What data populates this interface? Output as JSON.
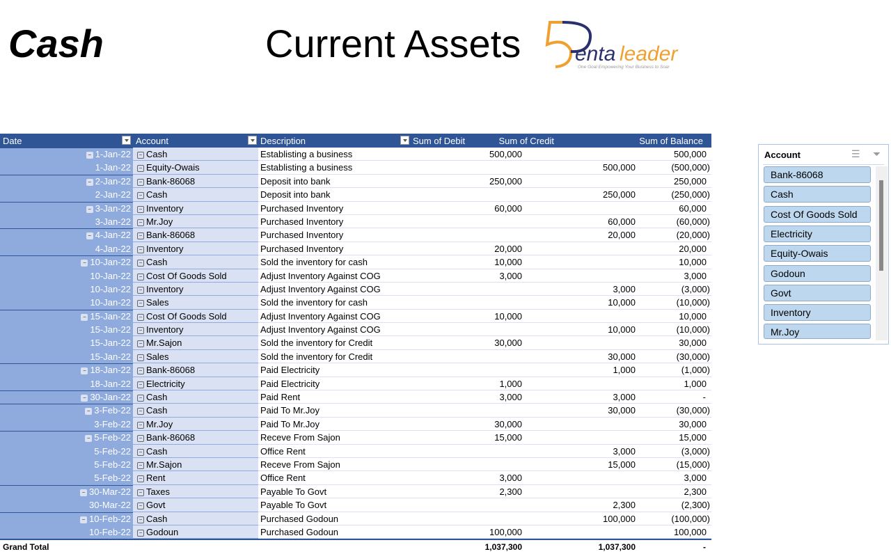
{
  "header": {
    "sheet_label": "Cash",
    "title": "Current Assets"
  },
  "logo": {
    "brand": "Pentaleader",
    "digit": "5",
    "word_dark": "enta",
    "word_light": "leader",
    "tagline": "One Goal Empowering Your Business to Soar",
    "colors": {
      "orange": "#f0a030",
      "navy": "#2a2f6e"
    }
  },
  "pivot": {
    "columns": [
      "Date",
      "Account",
      "Description",
      "Sum of Debit",
      "Sum of Credit",
      "Sum of Balance"
    ],
    "rows": [
      {
        "first": true,
        "date": "1-Jan-22",
        "account": "Cash",
        "description": "Establisting a business",
        "debit": "500,000",
        "credit": "",
        "balance": "500,000"
      },
      {
        "first": false,
        "date": "1-Jan-22",
        "account": "Equity-Owais",
        "description": "Establisting a business",
        "debit": "",
        "credit": "500,000",
        "balance": "(500,000)"
      },
      {
        "first": true,
        "date": "2-Jan-22",
        "account": "Bank-86068",
        "description": "Deposit into bank",
        "debit": "250,000",
        "credit": "",
        "balance": "250,000"
      },
      {
        "first": false,
        "date": "2-Jan-22",
        "account": "Cash",
        "description": "Deposit into bank",
        "debit": "",
        "credit": "250,000",
        "balance": "(250,000)"
      },
      {
        "first": true,
        "date": "3-Jan-22",
        "account": "Inventory",
        "description": "Purchased Inventory",
        "debit": "60,000",
        "credit": "",
        "balance": "60,000"
      },
      {
        "first": false,
        "date": "3-Jan-22",
        "account": "Mr.Joy",
        "description": "Purchased Inventory",
        "debit": "",
        "credit": "60,000",
        "balance": "(60,000)"
      },
      {
        "first": true,
        "date": "4-Jan-22",
        "account": "Bank-86068",
        "description": "Purchased Inventory",
        "debit": "",
        "credit": "20,000",
        "balance": "(20,000)"
      },
      {
        "first": false,
        "date": "4-Jan-22",
        "account": "Inventory",
        "description": "Purchased Inventory",
        "debit": "20,000",
        "credit": "",
        "balance": "20,000"
      },
      {
        "first": true,
        "date": "10-Jan-22",
        "account": "Cash",
        "description": "Sold the inventory for cash",
        "debit": "10,000",
        "credit": "",
        "balance": "10,000"
      },
      {
        "first": false,
        "date": "10-Jan-22",
        "account": "Cost Of Goods Sold",
        "description": "Adjust Inventory Against COG",
        "debit": "3,000",
        "credit": "",
        "balance": "3,000"
      },
      {
        "first": false,
        "date": "10-Jan-22",
        "account": "Inventory",
        "description": "Adjust Inventory Against COG",
        "debit": "",
        "credit": "3,000",
        "balance": "(3,000)"
      },
      {
        "first": false,
        "date": "10-Jan-22",
        "account": "Sales",
        "description": "Sold the inventory for cash",
        "debit": "",
        "credit": "10,000",
        "balance": "(10,000)"
      },
      {
        "first": true,
        "date": "15-Jan-22",
        "account": "Cost Of Goods Sold",
        "description": "Adjust Inventory Against COG",
        "debit": "10,000",
        "credit": "",
        "balance": "10,000"
      },
      {
        "first": false,
        "date": "15-Jan-22",
        "account": "Inventory",
        "description": "Adjust Inventory Against COG",
        "debit": "",
        "credit": "10,000",
        "balance": "(10,000)"
      },
      {
        "first": false,
        "date": "15-Jan-22",
        "account": "Mr.Sajon",
        "description": "Sold the inventory for Credit",
        "debit": "30,000",
        "credit": "",
        "balance": "30,000"
      },
      {
        "first": false,
        "date": "15-Jan-22",
        "account": "Sales",
        "description": "Sold the inventory for Credit",
        "debit": "",
        "credit": "30,000",
        "balance": "(30,000)"
      },
      {
        "first": true,
        "date": "18-Jan-22",
        "account": "Bank-86068",
        "description": "Paid Electricity",
        "debit": "",
        "credit": "1,000",
        "balance": "(1,000)"
      },
      {
        "first": false,
        "date": "18-Jan-22",
        "account": "Electricity",
        "description": "Paid Electricity",
        "debit": "1,000",
        "credit": "",
        "balance": "1,000"
      },
      {
        "first": true,
        "date": "30-Jan-22",
        "account": "Cash",
        "description": "Paid Rent",
        "debit": "3,000",
        "credit": "3,000",
        "balance": "-"
      },
      {
        "first": true,
        "date": "3-Feb-22",
        "account": "Cash",
        "description": "Paid To Mr.Joy",
        "debit": "",
        "credit": "30,000",
        "balance": "(30,000)"
      },
      {
        "first": false,
        "date": "3-Feb-22",
        "account": "Mr.Joy",
        "description": "Paid To Mr.Joy",
        "debit": "30,000",
        "credit": "",
        "balance": "30,000"
      },
      {
        "first": true,
        "date": "5-Feb-22",
        "account": "Bank-86068",
        "description": "Receve From Sajon",
        "debit": "15,000",
        "credit": "",
        "balance": "15,000"
      },
      {
        "first": false,
        "date": "5-Feb-22",
        "account": "Cash",
        "description": "Office Rent",
        "debit": "",
        "credit": "3,000",
        "balance": "(3,000)"
      },
      {
        "first": false,
        "date": "5-Feb-22",
        "account": "Mr.Sajon",
        "description": "Receve From Sajon",
        "debit": "",
        "credit": "15,000",
        "balance": "(15,000)"
      },
      {
        "first": false,
        "date": "5-Feb-22",
        "account": "Rent",
        "description": "Office Rent",
        "debit": "3,000",
        "credit": "",
        "balance": "3,000"
      },
      {
        "first": true,
        "date": "30-Mar-22",
        "account": "Taxes",
        "description": "Payable To Govt",
        "debit": "2,300",
        "credit": "",
        "balance": "2,300"
      },
      {
        "first": false,
        "date": "30-Mar-22",
        "account": "Govt",
        "description": "Payable To Govt",
        "debit": "",
        "credit": "2,300",
        "balance": "(2,300)"
      },
      {
        "first": true,
        "date": "10-Feb-22",
        "account": "Cash",
        "description": "Purchased Godoun",
        "debit": "",
        "credit": "100,000",
        "balance": "(100,000)"
      },
      {
        "first": false,
        "date": "10-Feb-22",
        "account": "Godoun",
        "description": "Purchased Godoun",
        "debit": "100,000",
        "credit": "",
        "balance": "100,000"
      }
    ],
    "grand_total": {
      "label": "Grand Total",
      "debit": "1,037,300",
      "credit": "1,037,300",
      "balance": "-"
    }
  },
  "slicer": {
    "title": "Account",
    "icons": [
      "multi-select-icon",
      "clear-filter-icon"
    ],
    "items": [
      "Bank-86068",
      "Cash",
      "Cost Of Goods Sold",
      "Electricity",
      "Equity-Owais",
      "Godoun",
      "Govt",
      "Inventory",
      "Mr.Joy"
    ]
  }
}
